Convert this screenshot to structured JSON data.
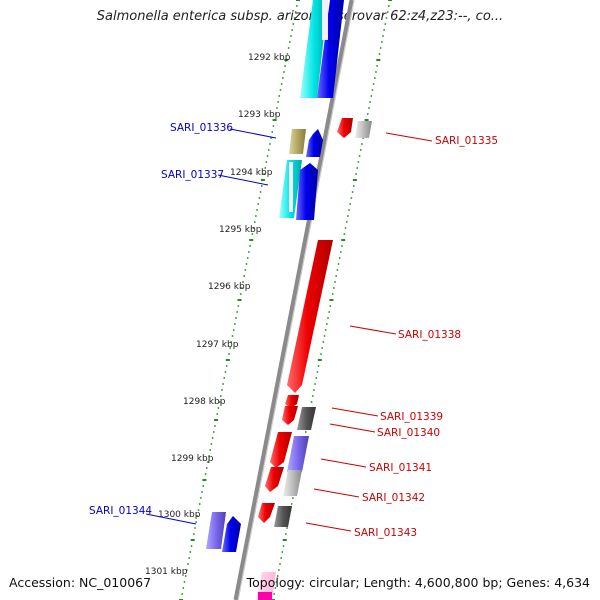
{
  "title": "Salmonella enterica subsp. arizonae serovar 62:z4,z23:--, co...",
  "accession_text": "Accession: NC_010067",
  "topology_text": "Topology: circular; Length: 4,600,800 bp; Genes: 4,634",
  "ruler_ticks": [
    "1292 kbp",
    "1293 kbp",
    "1294 kbp",
    "1295 kbp",
    "1296 kbp",
    "1297 kbp",
    "1298 kbp",
    "1299 kbp",
    "1300 kbp",
    "1301 kbp"
  ],
  "gene_labels": {
    "left": [
      "SARI_01336",
      "SARI_01337",
      "SARI_01344"
    ],
    "right": [
      "SARI_01335",
      "SARI_01338",
      "SARI_01339",
      "SARI_01340",
      "SARI_01341",
      "SARI_01342",
      "SARI_01343"
    ]
  },
  "colors": {
    "forward_label": "#0000cc",
    "reverse_label": "#cc0000",
    "backbone": "#888888",
    "ruler_dots": "#228b22",
    "cyan": "#00e5e5",
    "blue": "#0000ee",
    "red": "#ee0000",
    "olive": "#b3a860",
    "purple": "#7b68ee",
    "gray": "#bdbdbd",
    "darkgray": "#555555",
    "pink": "#ffb6d9",
    "magenta": "#ff00aa"
  }
}
